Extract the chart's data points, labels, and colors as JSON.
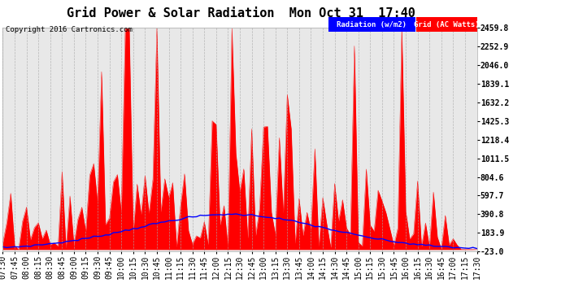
{
  "title": "Grid Power & Solar Radiation  Mon Oct 31  17:40",
  "copyright": "Copyright 2016 Cartronics.com",
  "legend_radiation": "Radiation (w/m2)",
  "legend_grid": "Grid (AC Watts)",
  "ylabel_right_ticks": [
    2459.8,
    2252.9,
    2046.0,
    1839.1,
    1632.2,
    1425.3,
    1218.4,
    1011.5,
    804.6,
    597.7,
    390.8,
    183.9,
    -23.0
  ],
  "ymin": -23.0,
  "ymax": 2459.8,
  "bg_color": "#ffffff",
  "plot_bg_color": "#e8e8e8",
  "grid_color": "#aaaaaa",
  "radiation_color": "#0000ff",
  "grid_ac_color": "#ff0000",
  "title_fontsize": 11,
  "tick_fontsize": 7,
  "xtick_labels": [
    "07:30",
    "07:45",
    "08:00",
    "08:15",
    "08:30",
    "08:45",
    "09:00",
    "09:15",
    "09:30",
    "09:45",
    "10:00",
    "10:15",
    "10:30",
    "10:45",
    "11:00",
    "11:15",
    "11:30",
    "11:45",
    "12:00",
    "12:15",
    "12:30",
    "12:45",
    "13:00",
    "13:15",
    "13:30",
    "13:45",
    "14:00",
    "14:15",
    "14:30",
    "14:45",
    "15:00",
    "15:15",
    "15:30",
    "15:45",
    "16:00",
    "16:15",
    "16:30",
    "16:45",
    "17:00",
    "17:15",
    "17:30"
  ]
}
